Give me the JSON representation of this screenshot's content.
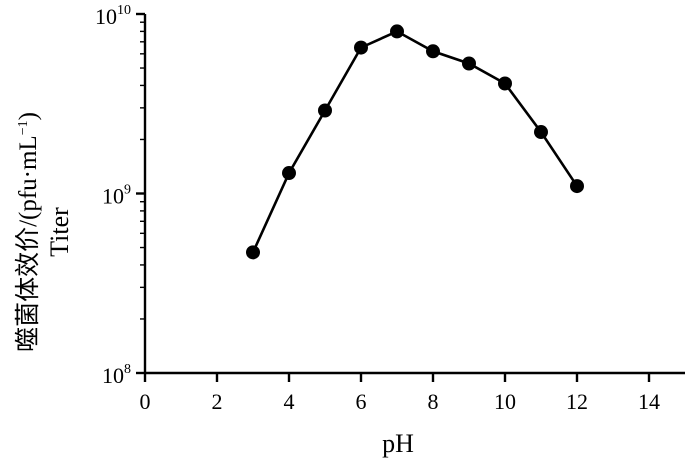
{
  "chart_data": {
    "type": "line",
    "title": "",
    "xlabel": "pH",
    "ylabel_cn": "噬菌体效价/(pfu·mL",
    "ylabel_unit_exp": "−1",
    "ylabel_close": ")",
    "ylabel_en": "Titer",
    "xlim": [
      0,
      15
    ],
    "ylim": [
      100000000,
      10000000000
    ],
    "y_scale": "log",
    "grid": false,
    "x_ticks": [
      {
        "value": 0,
        "label": "0"
      },
      {
        "value": 2,
        "label": "2"
      },
      {
        "value": 4,
        "label": "4"
      },
      {
        "value": 6,
        "label": "6"
      },
      {
        "value": 8,
        "label": "8"
      },
      {
        "value": 10,
        "label": "10"
      },
      {
        "value": 12,
        "label": "12"
      },
      {
        "value": 14,
        "label": "14"
      }
    ],
    "y_ticks": [
      {
        "value": 100000000,
        "base": "10",
        "exp": "8"
      },
      {
        "value": 1000000000,
        "base": "10",
        "exp": "9"
      },
      {
        "value": 10000000000,
        "base": "10",
        "exp": "10"
      }
    ],
    "series": [
      {
        "color": "#000000",
        "x": [
          3,
          4,
          5,
          6,
          7,
          8,
          9,
          10,
          11,
          12
        ],
        "y": [
          470000000,
          1300000000,
          2900000000,
          6500000000,
          8000000000,
          6200000000,
          5300000000,
          4100000000,
          2200000000,
          1100000000
        ]
      }
    ]
  }
}
